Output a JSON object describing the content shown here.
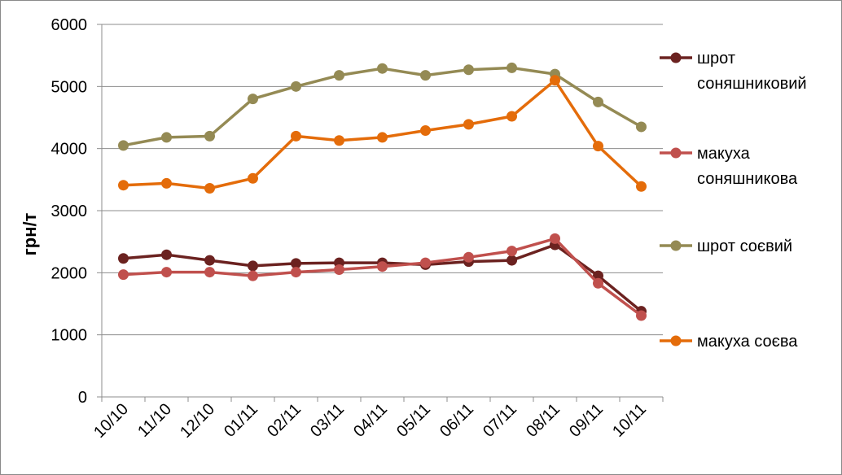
{
  "chart_data": {
    "type": "line",
    "xlabel": "",
    "ylabel": "грн/т",
    "categories": [
      "10/10",
      "11/10",
      "12/10",
      "01/11",
      "02/11",
      "03/11",
      "04/11",
      "05/11",
      "06/11",
      "07/11",
      "08/11",
      "09/11",
      "10/11"
    ],
    "ylim": [
      0,
      6000
    ],
    "yticks": [
      0,
      1000,
      2000,
      3000,
      4000,
      5000,
      6000
    ],
    "grid": true,
    "legend_position": "right",
    "series": [
      {
        "name_lines": [
          "шрот",
          "соняшниковий"
        ],
        "name": "шрот соняшниковий",
        "color": "#6b2220",
        "values": [
          2230,
          2290,
          2200,
          2110,
          2150,
          2160,
          2160,
          2130,
          2180,
          2200,
          2450,
          1950,
          1380
        ]
      },
      {
        "name_lines": [
          "макуха",
          "соняшникова"
        ],
        "name": "макуха соняшникова",
        "color": "#c0504d",
        "values": [
          1970,
          2010,
          2010,
          1950,
          2010,
          2050,
          2100,
          2160,
          2250,
          2350,
          2550,
          1830,
          1310
        ]
      },
      {
        "name_lines": [
          "шрот соєвий"
        ],
        "name": "шрот соєвий",
        "color": "#948a54",
        "values": [
          4050,
          4180,
          4200,
          4800,
          5000,
          5180,
          5290,
          5180,
          5270,
          5300,
          5200,
          4750,
          4350
        ]
      },
      {
        "name_lines": [
          "макуха соєва"
        ],
        "name": "макуха соєва",
        "color": "#e46c0a",
        "values": [
          3410,
          3440,
          3360,
          3520,
          4200,
          4130,
          4180,
          4290,
          4390,
          4520,
          5100,
          4040,
          3390
        ]
      }
    ]
  }
}
